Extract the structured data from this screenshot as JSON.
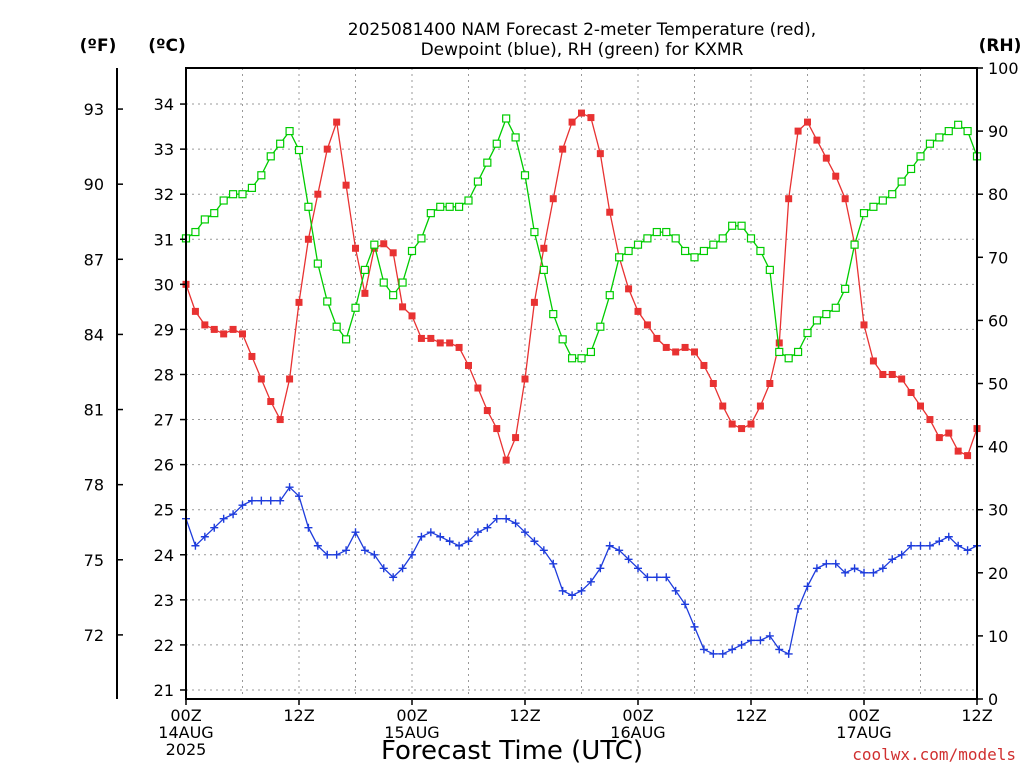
{
  "chart_data": {
    "type": "line",
    "title_lines": [
      "2025081400 NAM Forecast 2-meter Temperature (red),",
      "Dewpoint (blue), RH (green) for KXMR"
    ],
    "xlabel": "Forecast Time (UTC)",
    "credit": "coolwx.com/models",
    "unit_labels": {
      "fahrenheit": "(ºF)",
      "celsius": "(ºC)",
      "rh": "(RH)"
    },
    "x_start": "2025-08-14 00Z",
    "x_step_hours": 1,
    "x_range_hours": [
      0,
      84
    ],
    "x_ticks": [
      {
        "h": 0,
        "lines": [
          "00Z",
          "14AUG",
          "2025"
        ]
      },
      {
        "h": 12,
        "lines": [
          "12Z"
        ]
      },
      {
        "h": 24,
        "lines": [
          "00Z",
          "15AUG"
        ]
      },
      {
        "h": 36,
        "lines": [
          "12Z"
        ]
      },
      {
        "h": 48,
        "lines": [
          "00Z",
          "16AUG"
        ]
      },
      {
        "h": 60,
        "lines": [
          "12Z"
        ]
      },
      {
        "h": 72,
        "lines": [
          "00Z",
          "17AUG"
        ]
      },
      {
        "h": 84,
        "lines": [
          "12Z"
        ]
      }
    ],
    "y_celsius": {
      "range": [
        20.8,
        34.8
      ],
      "ticks": [
        "21",
        "22",
        "23",
        "24",
        "25",
        "26",
        "27",
        "28",
        "29",
        "30",
        "31",
        "32",
        "33",
        "34"
      ]
    },
    "y_fahrenheit_ticks": [
      "72",
      "75",
      "78",
      "81",
      "84",
      "87",
      "90",
      "93"
    ],
    "y_rh": {
      "range": [
        0,
        100
      ],
      "ticks": [
        "0",
        "10",
        "20",
        "30",
        "40",
        "50",
        "60",
        "70",
        "80",
        "90",
        "100"
      ]
    },
    "grid": "dotted",
    "colors": {
      "temperature": "#e83232",
      "dewpoint": "#1e3cdc",
      "rh": "#00cc00"
    },
    "series": [
      {
        "key": "temperature",
        "marker": "filled-square",
        "values": [
          30.0,
          29.4,
          29.1,
          29.0,
          28.9,
          29.0,
          28.9,
          28.4,
          27.9,
          27.4,
          27.0,
          27.9,
          29.6,
          31.0,
          32.0,
          33.0,
          33.6,
          32.2,
          30.8,
          29.8,
          30.8,
          30.9,
          30.7,
          29.5,
          29.3,
          28.8,
          28.8,
          28.7,
          28.7,
          28.6,
          28.2,
          27.7,
          27.2,
          26.8,
          26.1,
          26.6,
          27.9,
          29.6,
          30.8,
          31.9,
          33.0,
          33.6,
          33.8,
          33.7,
          32.9,
          31.6,
          30.6,
          29.9,
          29.4,
          29.1,
          28.8,
          28.6,
          28.5,
          28.6,
          28.5,
          28.2,
          27.8,
          27.3,
          26.9,
          26.8,
          26.9,
          27.3,
          27.8,
          28.7,
          31.9,
          33.4,
          33.6,
          33.2,
          32.8,
          32.4,
          31.9,
          30.9,
          29.1,
          28.3,
          28.0,
          28.0,
          27.9,
          27.6,
          27.3,
          27.0,
          26.6,
          26.7,
          26.3,
          26.2,
          26.8
        ]
      },
      {
        "key": "dewpoint",
        "marker": "plus",
        "values": [
          24.8,
          24.2,
          24.4,
          24.6,
          24.8,
          24.9,
          25.1,
          25.2,
          25.2,
          25.2,
          25.2,
          25.5,
          25.3,
          24.6,
          24.2,
          24.0,
          24.0,
          24.1,
          24.5,
          24.1,
          24.0,
          23.7,
          23.5,
          23.7,
          24.0,
          24.4,
          24.5,
          24.4,
          24.3,
          24.2,
          24.3,
          24.5,
          24.6,
          24.8,
          24.8,
          24.7,
          24.5,
          24.3,
          24.1,
          23.8,
          23.2,
          23.1,
          23.2,
          23.4,
          23.7,
          24.2,
          24.1,
          23.9,
          23.7,
          23.5,
          23.5,
          23.5,
          23.2,
          22.9,
          22.4,
          21.9,
          21.8,
          21.8,
          21.9,
          22.0,
          22.1,
          22.1,
          22.2,
          21.9,
          21.8,
          22.8,
          23.3,
          23.7,
          23.8,
          23.8,
          23.6,
          23.7,
          23.6,
          23.6,
          23.7,
          23.9,
          24.0,
          24.2,
          24.2,
          24.2,
          24.3,
          24.4,
          24.2,
          24.1,
          24.2
        ]
      },
      {
        "key": "rh",
        "marker": "open-square",
        "values": [
          73,
          74,
          76,
          77,
          79,
          80,
          80,
          81,
          83,
          86,
          88,
          90,
          87,
          78,
          69,
          63,
          59,
          57,
          62,
          68,
          72,
          66,
          64,
          66,
          71,
          73,
          77,
          78,
          78,
          78,
          79,
          82,
          85,
          88,
          92,
          89,
          83,
          74,
          68,
          61,
          57,
          54,
          54,
          55,
          59,
          64,
          70,
          71,
          72,
          73,
          74,
          74,
          73,
          71,
          70,
          71,
          72,
          73,
          75,
          75,
          73,
          71,
          68,
          55,
          54,
          55,
          58,
          60,
          61,
          62,
          65,
          72,
          77,
          78,
          79,
          80,
          82,
          84,
          86,
          88,
          89,
          90,
          91,
          90,
          86
        ]
      }
    ]
  }
}
